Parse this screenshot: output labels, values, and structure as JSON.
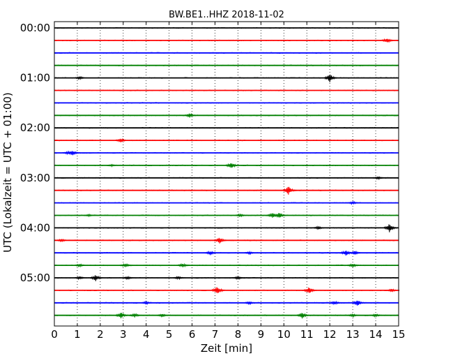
{
  "chart_data": {
    "type": "line",
    "title": "BW.BE1..HHZ 2018-11-02",
    "xlabel": "Zeit  [min]",
    "ylabel": "UTC (Lokalzeit = UTC + 01:00)",
    "xlim": [
      0,
      15
    ],
    "xticks": [
      0,
      1,
      2,
      3,
      4,
      5,
      6,
      7,
      8,
      9,
      10,
      11,
      12,
      13,
      14,
      15
    ],
    "row_interval_minutes": 15,
    "row_labels": [
      {
        "row": 0,
        "label": "00:00"
      },
      {
        "row": 4,
        "label": "01:00"
      },
      {
        "row": 8,
        "label": "02:00"
      },
      {
        "row": 12,
        "label": "03:00"
      },
      {
        "row": 16,
        "label": "04:00"
      },
      {
        "row": 20,
        "label": "05:00"
      }
    ],
    "grid": "vertical dotted",
    "colors": [
      "#000000",
      "#ff0000",
      "#0000ff",
      "#008000"
    ],
    "traces": [
      {
        "start": "00:00",
        "color": "#000000",
        "events": []
      },
      {
        "start": "00:15",
        "color": "#ff0000",
        "events": [
          {
            "t": 14.5,
            "amp": 0.5
          }
        ]
      },
      {
        "start": "00:30",
        "color": "#0000ff",
        "events": []
      },
      {
        "start": "00:45",
        "color": "#008000",
        "events": []
      },
      {
        "start": "01:00",
        "color": "#000000",
        "events": [
          {
            "t": 1.1,
            "amp": 0.3
          },
          {
            "t": 12.0,
            "amp": 0.8
          }
        ]
      },
      {
        "start": "01:15",
        "color": "#ff0000",
        "events": []
      },
      {
        "start": "01:30",
        "color": "#0000ff",
        "events": []
      },
      {
        "start": "01:45",
        "color": "#008000",
        "events": [
          {
            "t": 5.9,
            "amp": 0.4
          }
        ]
      },
      {
        "start": "02:00",
        "color": "#000000",
        "events": []
      },
      {
        "start": "02:15",
        "color": "#ff0000",
        "events": [
          {
            "t": 2.9,
            "amp": 0.4
          }
        ]
      },
      {
        "start": "02:30",
        "color": "#0000ff",
        "events": [
          {
            "t": 0.6,
            "amp": 0.3
          },
          {
            "t": 0.8,
            "amp": 0.5
          }
        ]
      },
      {
        "start": "02:45",
        "color": "#008000",
        "events": [
          {
            "t": 2.5,
            "amp": 0.2
          },
          {
            "t": 7.7,
            "amp": 0.6
          }
        ]
      },
      {
        "start": "03:00",
        "color": "#000000",
        "events": [
          {
            "t": 14.1,
            "amp": 0.3
          }
        ]
      },
      {
        "start": "03:15",
        "color": "#ff0000",
        "events": [
          {
            "t": 10.2,
            "amp": 0.8
          }
        ]
      },
      {
        "start": "03:30",
        "color": "#0000ff",
        "events": [
          {
            "t": 13.0,
            "amp": 0.3
          }
        ]
      },
      {
        "start": "03:45",
        "color": "#008000",
        "events": [
          {
            "t": 1.5,
            "amp": 0.2
          },
          {
            "t": 8.1,
            "amp": 0.3
          },
          {
            "t": 9.5,
            "amp": 0.5
          },
          {
            "t": 9.8,
            "amp": 0.6
          }
        ]
      },
      {
        "start": "04:00",
        "color": "#000000",
        "events": [
          {
            "t": 11.5,
            "amp": 0.3
          },
          {
            "t": 14.6,
            "amp": 0.8
          }
        ]
      },
      {
        "start": "04:15",
        "color": "#ff0000",
        "events": [
          {
            "t": 0.3,
            "amp": 0.3
          },
          {
            "t": 7.2,
            "amp": 0.6
          }
        ]
      },
      {
        "start": "04:30",
        "color": "#0000ff",
        "events": [
          {
            "t": 6.8,
            "amp": 0.4
          },
          {
            "t": 8.5,
            "amp": 0.3
          },
          {
            "t": 12.7,
            "amp": 0.6
          },
          {
            "t": 13.1,
            "amp": 0.4
          }
        ]
      },
      {
        "start": "04:45",
        "color": "#008000",
        "events": [
          {
            "t": 1.1,
            "amp": 0.3
          },
          {
            "t": 3.1,
            "amp": 0.4
          },
          {
            "t": 5.6,
            "amp": 0.4
          },
          {
            "t": 13.0,
            "amp": 0.4
          }
        ]
      },
      {
        "start": "05:00",
        "color": "#000000",
        "events": [
          {
            "t": 1.1,
            "amp": 0.3
          },
          {
            "t": 1.8,
            "amp": 0.6
          },
          {
            "t": 3.2,
            "amp": 0.3
          },
          {
            "t": 5.4,
            "amp": 0.3
          },
          {
            "t": 8.0,
            "amp": 0.3
          }
        ]
      },
      {
        "start": "05:15",
        "color": "#ff0000",
        "events": [
          {
            "t": 7.1,
            "amp": 0.8
          },
          {
            "t": 11.1,
            "amp": 0.7
          },
          {
            "t": 14.7,
            "amp": 0.3
          }
        ]
      },
      {
        "start": "05:30",
        "color": "#0000ff",
        "events": [
          {
            "t": 4.0,
            "amp": 0.3
          },
          {
            "t": 8.5,
            "amp": 0.3
          },
          {
            "t": 12.2,
            "amp": 0.4
          },
          {
            "t": 13.2,
            "amp": 0.6
          }
        ]
      },
      {
        "start": "05:45",
        "color": "#008000",
        "events": [
          {
            "t": 2.9,
            "amp": 0.6
          },
          {
            "t": 3.5,
            "amp": 0.4
          },
          {
            "t": 4.7,
            "amp": 0.3
          },
          {
            "t": 10.8,
            "amp": 0.6
          },
          {
            "t": 13.0,
            "amp": 0.3
          },
          {
            "t": 14.0,
            "amp": 0.3
          }
        ]
      }
    ]
  }
}
